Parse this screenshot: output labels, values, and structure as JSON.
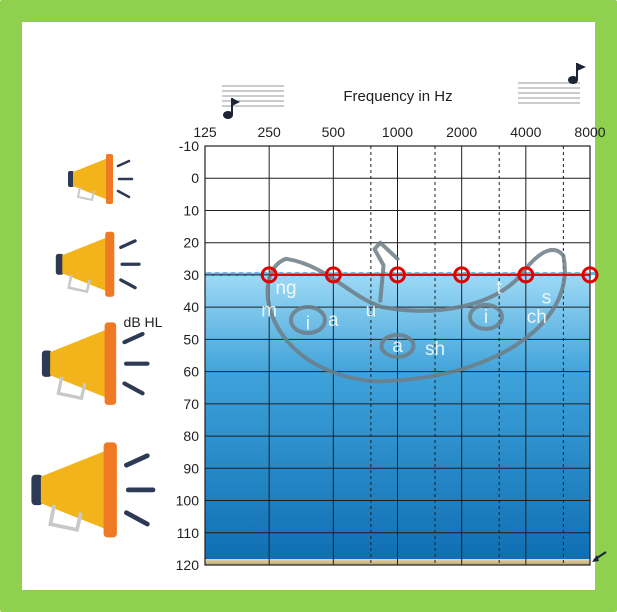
{
  "chart_data": {
    "type": "line",
    "xlabel": "Frequency in Hz",
    "ylabel": "dB HL",
    "x_ticks": [
      "125",
      "250",
      "500",
      "1000",
      "2000",
      "4000",
      "8000"
    ],
    "y_ticks": [
      -10,
      0,
      10,
      20,
      30,
      40,
      50,
      60,
      70,
      80,
      90,
      100,
      110,
      120
    ],
    "xscale": "log",
    "ylim": [
      -10,
      120
    ],
    "y_inverted": true,
    "grid": true,
    "series": [
      {
        "x": [
          250,
          500,
          1000,
          2000,
          4000,
          8000
        ],
        "values": [
          30,
          30,
          30,
          30,
          30,
          30
        ],
        "marker": "circle-open",
        "color": "#e00000"
      }
    ],
    "water_level_db": 30,
    "speech_sounds": [
      {
        "label": "ng",
        "freq": 300,
        "db": 34
      },
      {
        "label": "m",
        "freq": 250,
        "db": 41
      },
      {
        "label": "i",
        "freq": 380,
        "db": 45
      },
      {
        "label": "a",
        "freq": 500,
        "db": 44
      },
      {
        "label": "u",
        "freq": 750,
        "db": 41
      },
      {
        "label": "a",
        "freq": 1000,
        "db": 52
      },
      {
        "label": "sh",
        "freq": 1500,
        "db": 53
      },
      {
        "label": "t",
        "freq": 3000,
        "db": 34
      },
      {
        "label": "i",
        "freq": 2600,
        "db": 43
      },
      {
        "label": "s",
        "freq": 5000,
        "db": 37
      },
      {
        "label": "ch",
        "freq": 4500,
        "db": 43
      }
    ]
  },
  "colors": {
    "border": "#8fd14f",
    "water_top": "#8ed3f2",
    "water_bottom": "#0f6fb4",
    "marker": "#e00000",
    "megaphone": "#f3b41b"
  },
  "icons": [
    "music-note-low-icon",
    "music-note-high-icon",
    "megaphone-icon"
  ]
}
